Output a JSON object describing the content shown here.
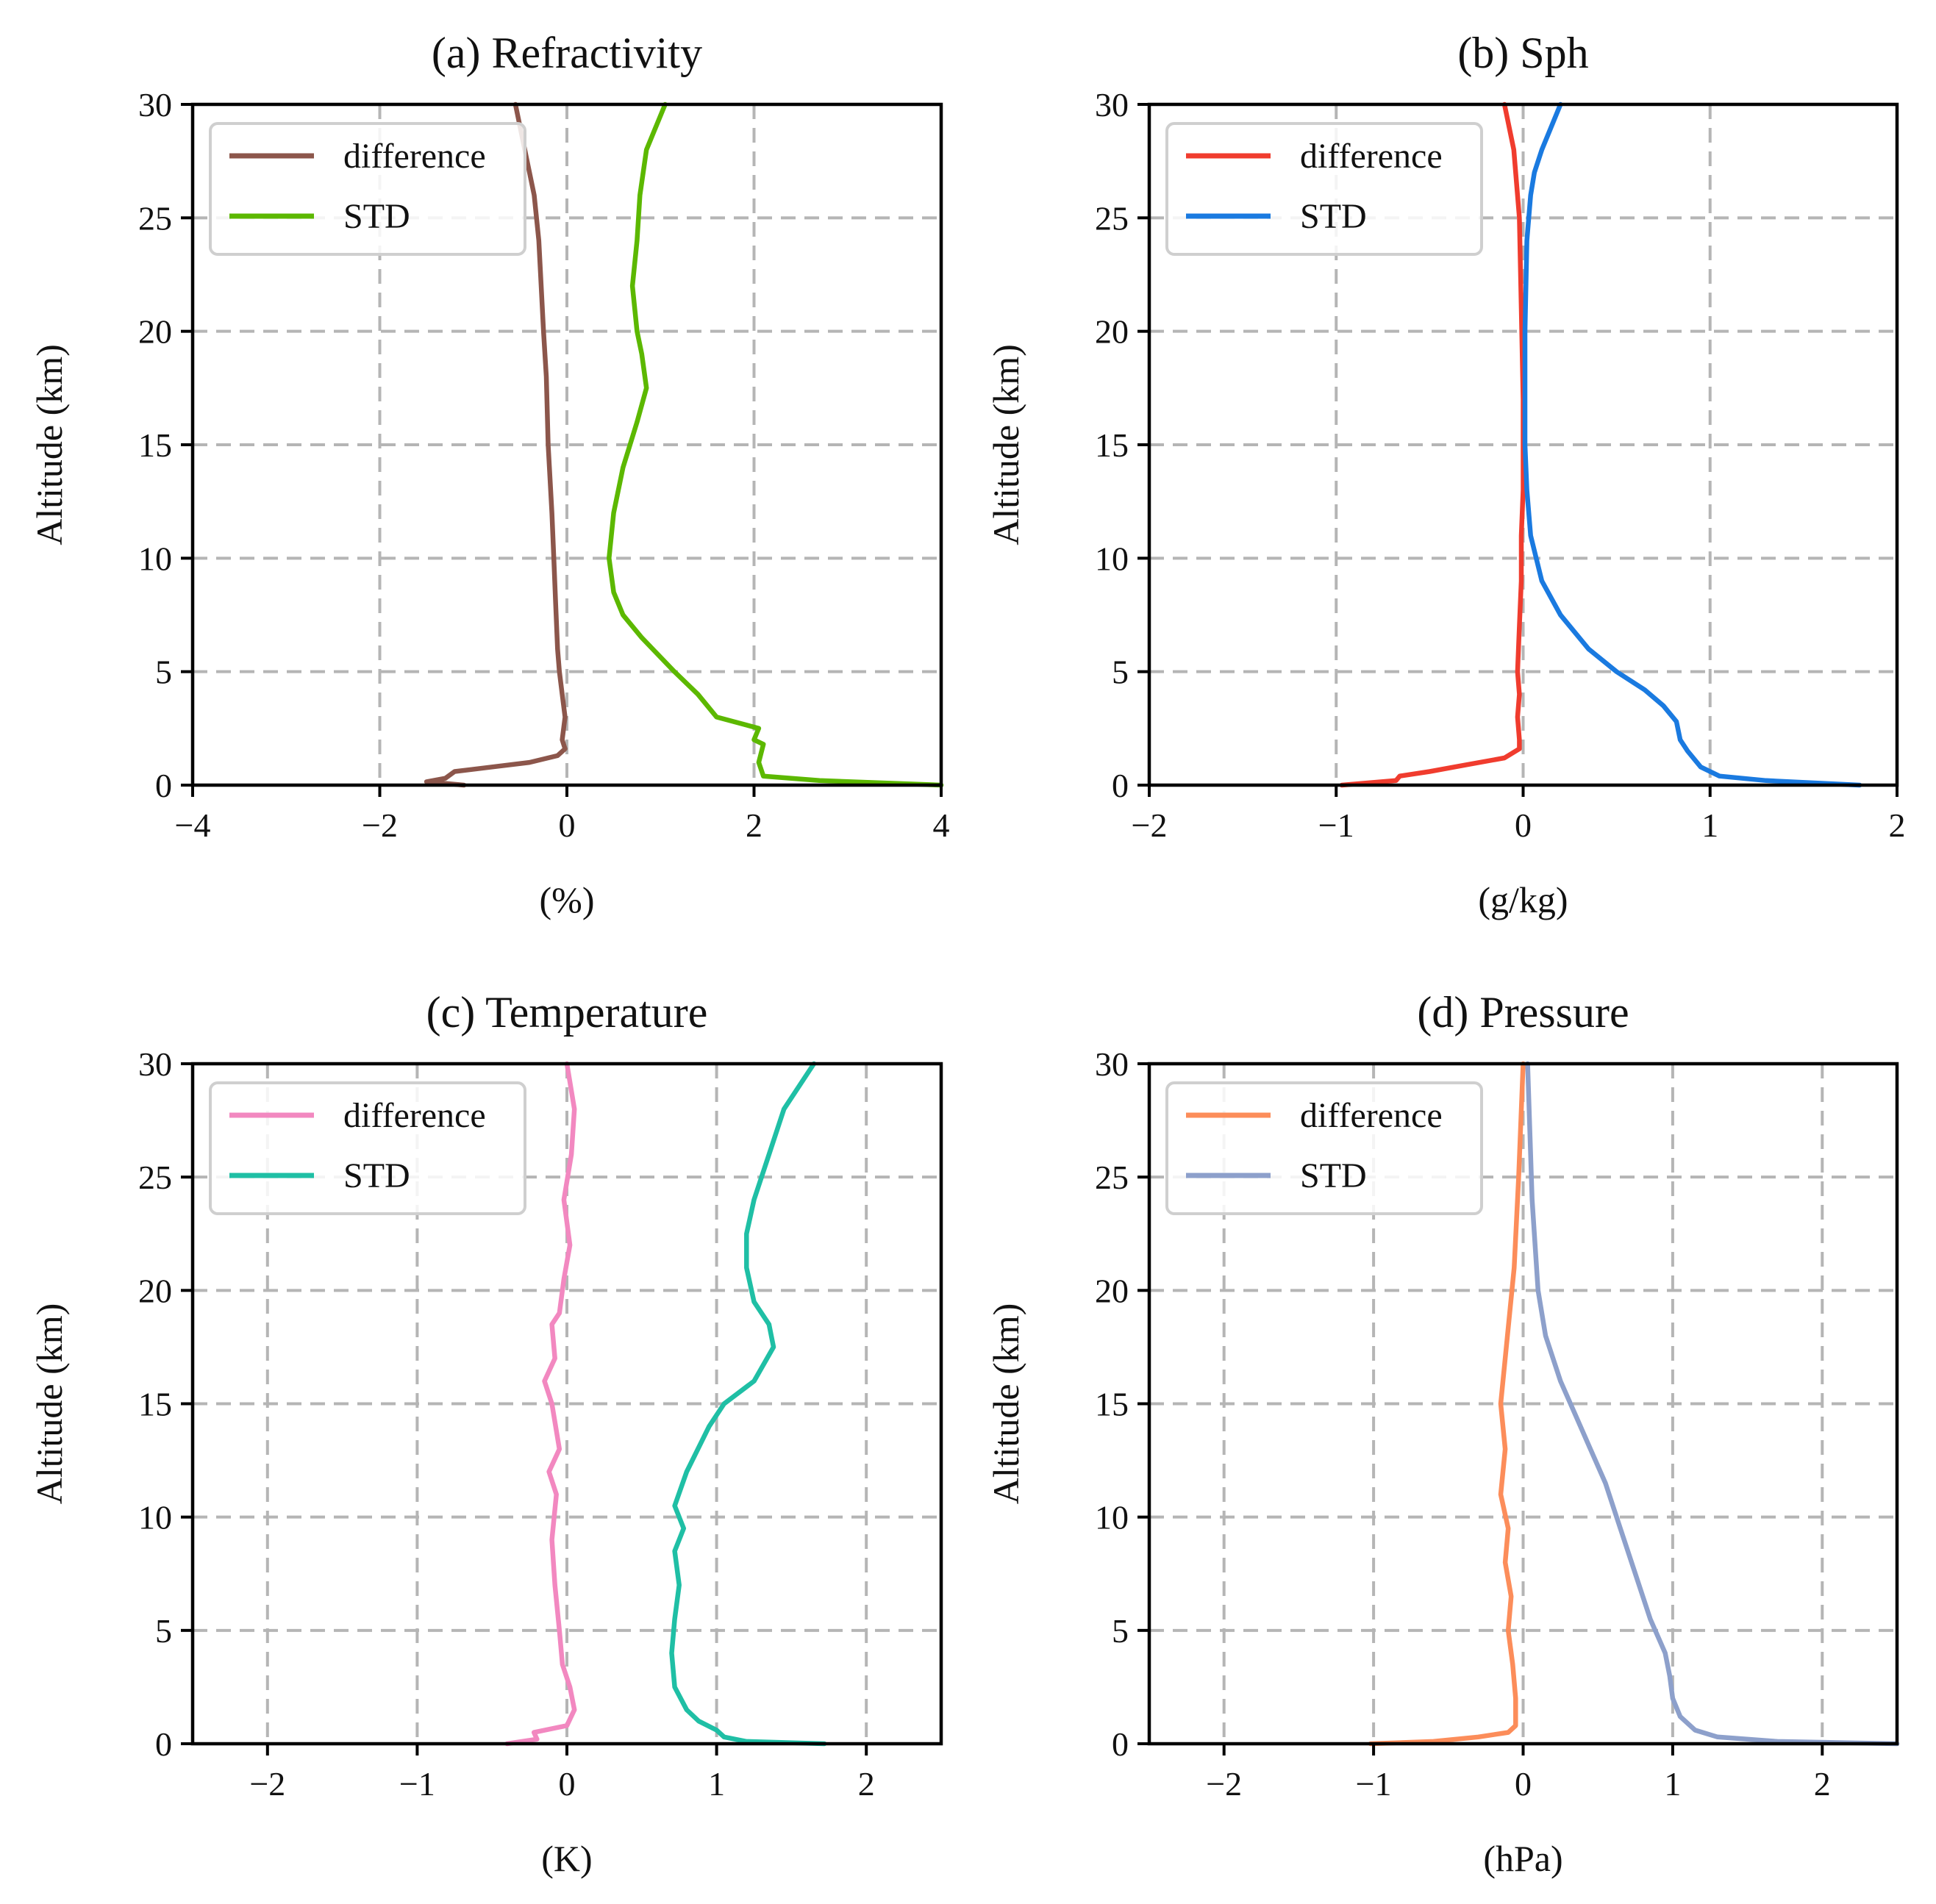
{
  "chart_data": [
    {
      "type": "line",
      "title": "(a) Refractivity",
      "xlabel": "(%)",
      "ylabel": "Altitude (km)",
      "xlim": [
        -4,
        4
      ],
      "ylim": [
        0,
        30
      ],
      "xticks": [
        -4,
        -2,
        0,
        2,
        4
      ],
      "xtick_labels": [
        "−4",
        "−2",
        "0",
        "2",
        "4"
      ],
      "yticks": [
        0,
        5,
        10,
        15,
        20,
        25,
        30
      ],
      "ytick_labels": [
        "0",
        "5",
        "10",
        "15",
        "20",
        "25",
        "30"
      ],
      "grid": true,
      "legend": "top-left",
      "series": [
        {
          "name": "difference",
          "color": "#8c564b",
          "x": [
            -1.1,
            -1.5,
            -1.3,
            -1.2,
            -0.8,
            -0.4,
            -0.1,
            -0.02,
            -0.05,
            -0.02,
            -0.05,
            -0.08,
            -0.1,
            -0.12,
            -0.14,
            -0.16,
            -0.2,
            -0.22,
            -0.25,
            -0.3,
            -0.35,
            -0.45,
            -0.55
          ],
          "y": [
            0,
            0.15,
            0.3,
            0.6,
            0.8,
            1.0,
            1.3,
            1.6,
            2.0,
            3.0,
            4.0,
            5.0,
            6.0,
            8.0,
            10.0,
            12.0,
            15.0,
            18.0,
            20.0,
            24.0,
            26.0,
            28.0,
            30.0
          ]
        },
        {
          "name": "STD",
          "color": "#5cb800",
          "x": [
            4.0,
            2.7,
            2.1,
            2.05,
            2.1,
            2.0,
            2.05,
            1.6,
            1.4,
            1.15,
            0.8,
            0.6,
            0.5,
            0.45,
            0.5,
            0.6,
            0.75,
            0.85,
            0.8,
            0.75,
            0.7,
            0.75,
            0.78,
            0.85,
            1.05
          ],
          "y": [
            0,
            0.2,
            0.4,
            1.0,
            1.8,
            2.0,
            2.5,
            3.0,
            4.0,
            5.0,
            6.5,
            7.5,
            8.5,
            10.0,
            12.0,
            14.0,
            16.0,
            17.5,
            19.0,
            20.0,
            22.0,
            24.0,
            26.0,
            28.0,
            30.0
          ]
        }
      ]
    },
    {
      "type": "line",
      "title": "(b) Sph",
      "xlabel": "(g/kg)",
      "ylabel": "Altitude (km)",
      "xlim": [
        -2,
        2
      ],
      "ylim": [
        0,
        30
      ],
      "xticks": [
        -2,
        -1,
        0,
        1,
        2
      ],
      "xtick_labels": [
        "−2",
        "−1",
        "0",
        "1",
        "2"
      ],
      "yticks": [
        0,
        5,
        10,
        15,
        20,
        25,
        30
      ],
      "ytick_labels": [
        "0",
        "5",
        "10",
        "15",
        "20",
        "25",
        "30"
      ],
      "grid": true,
      "legend": "top-left",
      "series": [
        {
          "name": "difference",
          "color": "#f03c2e",
          "x": [
            -0.97,
            -0.68,
            -0.66,
            -0.5,
            -0.3,
            -0.1,
            -0.02,
            -0.02,
            -0.03,
            -0.02,
            -0.03,
            -0.02,
            -0.01,
            -0.01,
            0.0,
            0.0,
            -0.01,
            -0.02,
            -0.05,
            -0.1
          ],
          "y": [
            0,
            0.2,
            0.4,
            0.6,
            0.9,
            1.2,
            1.6,
            2.0,
            3.0,
            4.0,
            5.0,
            7.0,
            9.0,
            11.0,
            13.0,
            17.0,
            21.0,
            25.0,
            28.0,
            30.0
          ]
        },
        {
          "name": "STD",
          "color": "#1a7ae0",
          "x": [
            1.8,
            1.3,
            1.05,
            0.95,
            0.88,
            0.84,
            0.82,
            0.75,
            0.65,
            0.5,
            0.35,
            0.2,
            0.1,
            0.04,
            0.02,
            0.01,
            0.01,
            0.02,
            0.04,
            0.06,
            0.1,
            0.15,
            0.2
          ],
          "y": [
            0,
            0.2,
            0.4,
            0.8,
            1.5,
            2.0,
            2.8,
            3.5,
            4.2,
            5.0,
            6.0,
            7.5,
            9.0,
            11.0,
            13.0,
            15.0,
            20.0,
            24.0,
            26.0,
            27.0,
            28.0,
            29.0,
            30.0
          ]
        }
      ]
    },
    {
      "type": "line",
      "title": "(c) Temperature",
      "xlabel": "(K)",
      "ylabel": "Altitude (km)",
      "xlim": [
        -2.5,
        2.5
      ],
      "ylim": [
        0,
        30
      ],
      "xticks": [
        -2,
        -1,
        0,
        1,
        2
      ],
      "xtick_labels": [
        "−2",
        "−1",
        "0",
        "1",
        "2"
      ],
      "yticks": [
        0,
        5,
        10,
        15,
        20,
        25,
        30
      ],
      "ytick_labels": [
        "0",
        "5",
        "10",
        "15",
        "20",
        "25",
        "30"
      ],
      "grid": true,
      "legend": "top-left",
      "series": [
        {
          "name": "difference",
          "color": "#f288c0",
          "x": [
            -0.4,
            -0.2,
            -0.22,
            0.0,
            0.05,
            0.02,
            -0.03,
            -0.05,
            -0.08,
            -0.1,
            -0.07,
            -0.12,
            -0.05,
            -0.1,
            -0.15,
            -0.08,
            -0.1,
            -0.05,
            -0.02,
            0.02,
            -0.02,
            0.03,
            0.05,
            0.0
          ],
          "y": [
            0,
            0.2,
            0.5,
            0.8,
            1.5,
            2.5,
            3.5,
            5.0,
            7.0,
            9.0,
            11.0,
            12.0,
            13.0,
            15.0,
            16.0,
            17.0,
            18.5,
            19.0,
            20.5,
            22.0,
            24.0,
            26.0,
            28.0,
            30.0
          ]
        },
        {
          "name": "STD",
          "color": "#1fbfa5",
          "x": [
            1.72,
            1.2,
            1.05,
            1.0,
            0.88,
            0.8,
            0.72,
            0.7,
            0.72,
            0.75,
            0.72,
            0.78,
            0.72,
            0.8,
            0.95,
            1.05,
            1.25,
            1.38,
            1.35,
            1.25,
            1.2,
            1.2,
            1.25,
            1.35,
            1.45,
            1.65
          ],
          "y": [
            0,
            0.1,
            0.3,
            0.6,
            1.0,
            1.5,
            2.5,
            4.0,
            5.5,
            7.0,
            8.5,
            9.5,
            10.5,
            12.0,
            14.0,
            15.0,
            16.0,
            17.5,
            18.5,
            19.5,
            21.0,
            22.5,
            24.0,
            26.0,
            28.0,
            30.0
          ]
        }
      ]
    },
    {
      "type": "line",
      "title": "(d) Pressure",
      "xlabel": "(hPa)",
      "ylabel": "Altitude (km)",
      "xlim": [
        -2.5,
        2.5
      ],
      "ylim": [
        0,
        30
      ],
      "xticks": [
        -2,
        -1,
        0,
        1,
        2
      ],
      "xtick_labels": [
        "−2",
        "−1",
        "0",
        "1",
        "2"
      ],
      "yticks": [
        0,
        5,
        10,
        15,
        20,
        25,
        30
      ],
      "ytick_labels": [
        "0",
        "5",
        "10",
        "15",
        "20",
        "25",
        "30"
      ],
      "grid": true,
      "legend": "top-left",
      "series": [
        {
          "name": "difference",
          "color": "#fc8d5a",
          "x": [
            -1.02,
            -0.6,
            -0.3,
            -0.1,
            -0.05,
            -0.05,
            -0.07,
            -0.1,
            -0.08,
            -0.12,
            -0.1,
            -0.15,
            -0.12,
            -0.15,
            -0.12,
            -0.06,
            -0.03,
            0.0
          ],
          "y": [
            0,
            0.1,
            0.3,
            0.5,
            0.8,
            2.0,
            3.5,
            5.0,
            6.5,
            8.0,
            9.5,
            11.0,
            13.0,
            15.0,
            17.0,
            21.0,
            25.0,
            30.0
          ]
        },
        {
          "name": "STD",
          "color": "#8da0cb",
          "x": [
            2.5,
            1.7,
            1.3,
            1.15,
            1.05,
            1.0,
            0.98,
            0.95,
            0.85,
            0.75,
            0.65,
            0.55,
            0.45,
            0.35,
            0.25,
            0.15,
            0.1,
            0.06,
            0.03
          ],
          "y": [
            0,
            0.1,
            0.3,
            0.6,
            1.2,
            2.0,
            3.0,
            4.0,
            5.5,
            7.5,
            9.5,
            11.5,
            13.0,
            14.5,
            16.0,
            18.0,
            20.0,
            24.0,
            30.0
          ]
        }
      ]
    }
  ]
}
